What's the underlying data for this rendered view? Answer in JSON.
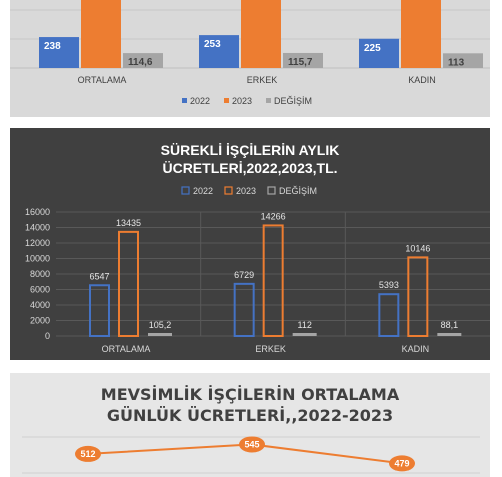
{
  "chart_data": [
    {
      "type": "bar",
      "title": "",
      "categories": [
        "ORTALAMA",
        "ERKEK",
        "KADIN"
      ],
      "series": [
        {
          "name": "2022",
          "values": [
            238,
            253,
            225
          ],
          "labels": [
            "238",
            "253",
            "225"
          ],
          "color": "#4472c4"
        },
        {
          "name": "2023",
          "values": [
            null,
            null,
            null
          ],
          "labels": [
            "",
            "",
            ""
          ],
          "color": "#ed7d31"
        },
        {
          "name": "DEĞİŞİM",
          "values": [
            114.6,
            115.7,
            113
          ],
          "labels": [
            "114,6",
            "115,7",
            "113"
          ],
          "color": "#a5a5a5"
        }
      ],
      "legend": "bottom",
      "grid": true
    },
    {
      "type": "bar",
      "title": "SÜREKLİ İŞÇİLERİN AYLIK ÜCRETLERİ,2022,2023,TL.",
      "title_lines": [
        "SÜREKLİ İŞÇİLERİN AYLIK",
        "ÜCRETLERİ,2022,2023,TL."
      ],
      "categories": [
        "ORTALAMA",
        "ERKEK",
        "KADIN"
      ],
      "series": [
        {
          "name": "2022",
          "values": [
            6547,
            6729,
            5393
          ],
          "labels": [
            "6547",
            "6729",
            "5393"
          ],
          "color": "#4472c4"
        },
        {
          "name": "2023",
          "values": [
            13435,
            14266,
            10146
          ],
          "labels": [
            "13435",
            "14266",
            "10146"
          ],
          "color": "#ed7d31"
        },
        {
          "name": "DEĞİŞİM",
          "values": [
            105.2,
            112,
            88.1
          ],
          "labels": [
            "105,2",
            "112",
            "88,1"
          ],
          "color": "#a5a5a5"
        }
      ],
      "ylim": [
        0,
        16000
      ],
      "yticks": [
        "0",
        "2000",
        "4000",
        "6000",
        "8000",
        "10000",
        "12000",
        "14000",
        "16000"
      ],
      "legend": "top",
      "grid": true
    },
    {
      "type": "line",
      "title": "MEVSİMLİK İŞÇİLERİN ORTALAMA GÜNLÜK ÜCRETLERİ,,2022-2023",
      "title_lines": [
        "MEVSİMLİK İŞÇİLERİN ORTALAMA",
        "GÜNLÜK ÜCRETLERİ,,2022-2023"
      ],
      "series": [
        {
          "name": "",
          "values": [
            512,
            545,
            479
          ],
          "labels": [
            "512",
            "545",
            "479"
          ],
          "color": "#ed7d31"
        }
      ],
      "grid": true
    }
  ]
}
